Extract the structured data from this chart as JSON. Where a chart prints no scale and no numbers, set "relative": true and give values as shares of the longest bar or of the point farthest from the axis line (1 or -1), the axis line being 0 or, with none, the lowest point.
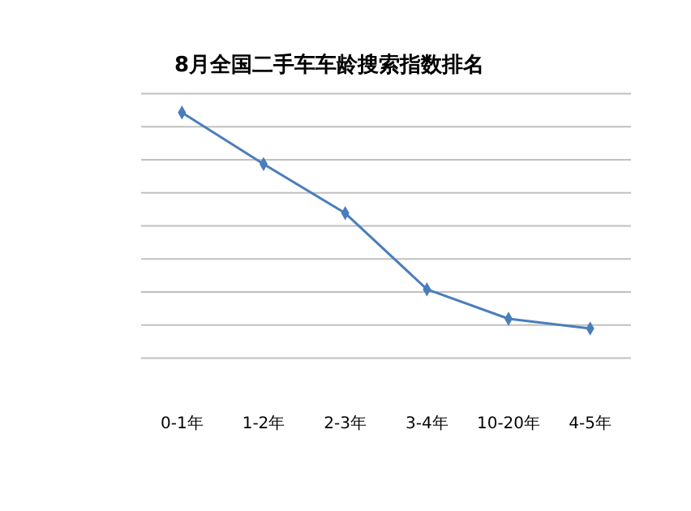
{
  "chart_data": {
    "type": "line",
    "title": "8月全国二手车车龄搜索指数排名",
    "categories": [
      "0-1年",
      "1-2年",
      "2-3年",
      "3-4年",
      "10-20年",
      "4-5年"
    ],
    "relative": true,
    "series": [
      {
        "color": "#4a7ebb",
        "values": [
          1,
          0.79,
          0.59,
          0.28,
          0.16,
          0.12
        ]
      }
    ],
    "grid": "y",
    "marker": "diamond",
    "line_style": "solid"
  }
}
